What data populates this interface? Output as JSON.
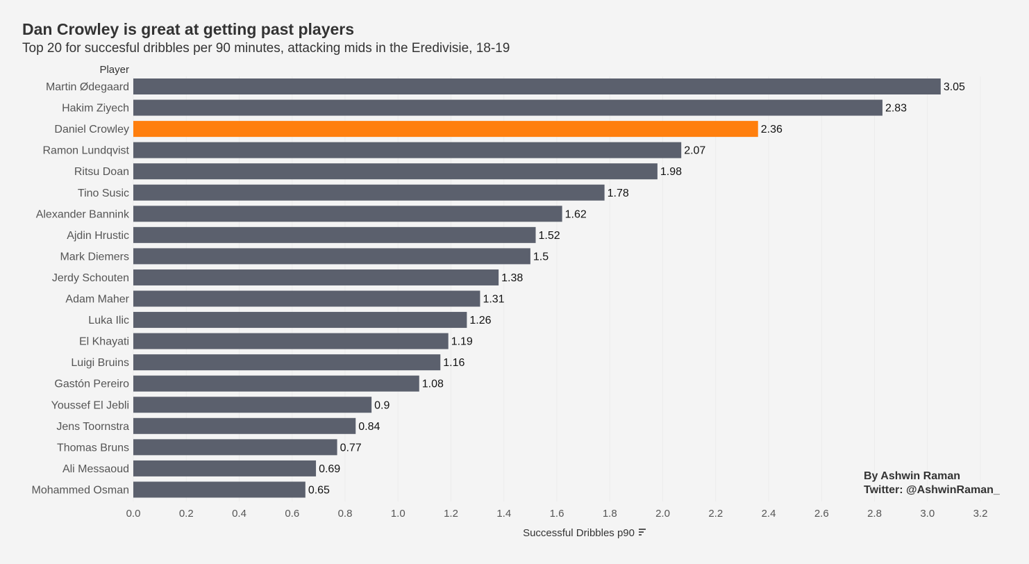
{
  "chart_data": {
    "type": "bar",
    "orientation": "horizontal",
    "title": "Dan Crowley is great at getting past players",
    "subtitle": "Top 20 for succesful dribbles per 90 minutes, attacking mids in the Eredivisie, 18-19",
    "ylabel": "Player",
    "xlabel": "Successful Dribbles p90",
    "xlim": [
      0,
      3.2
    ],
    "xticks": [
      "0.0",
      "0.2",
      "0.4",
      "0.6",
      "0.8",
      "1.0",
      "1.2",
      "1.4",
      "1.6",
      "1.8",
      "2.0",
      "2.2",
      "2.4",
      "2.6",
      "2.8",
      "3.0",
      "3.2"
    ],
    "grid": true,
    "categories": [
      "Martin Ødegaard",
      "Hakim Ziyech",
      "Daniel Crowley",
      "Ramon Lundqvist",
      "Ritsu Doan",
      "Tino Susic",
      "Alexander Bannink",
      "Ajdin Hrustic",
      "Mark Diemers",
      "Jerdy Schouten",
      "Adam Maher",
      "Luka Ilic",
      "El Khayati",
      "Luigi Bruins",
      "Gastón Pereiro",
      "Youssef El Jebli",
      "Jens Toornstra",
      "Thomas Bruns",
      "Ali Messaoud",
      "Mohammed Osman"
    ],
    "values": [
      3.05,
      2.83,
      2.36,
      2.07,
      1.98,
      1.78,
      1.62,
      1.52,
      1.5,
      1.38,
      1.31,
      1.26,
      1.19,
      1.16,
      1.08,
      0.9,
      0.84,
      0.77,
      0.69,
      0.65
    ],
    "value_labels": [
      "3.05",
      "2.83",
      "2.36",
      "2.07",
      "1.98",
      "1.78",
      "1.62",
      "1.52",
      "1.5",
      "1.38",
      "1.31",
      "1.26",
      "1.19",
      "1.16",
      "1.08",
      "0.9",
      "0.84",
      "0.77",
      "0.69",
      "0.65"
    ],
    "highlight": "Daniel Crowley",
    "colors": {
      "bar": "#5b606d",
      "highlight": "#ff7f0e",
      "background": "#f4f4f4",
      "text": "#333333",
      "axis_text": "#555555"
    }
  },
  "credit": {
    "line1": "By Ashwin Raman",
    "line2": "Twitter: @AshwinRaman_"
  },
  "sort_icon": "sort-descending-icon"
}
